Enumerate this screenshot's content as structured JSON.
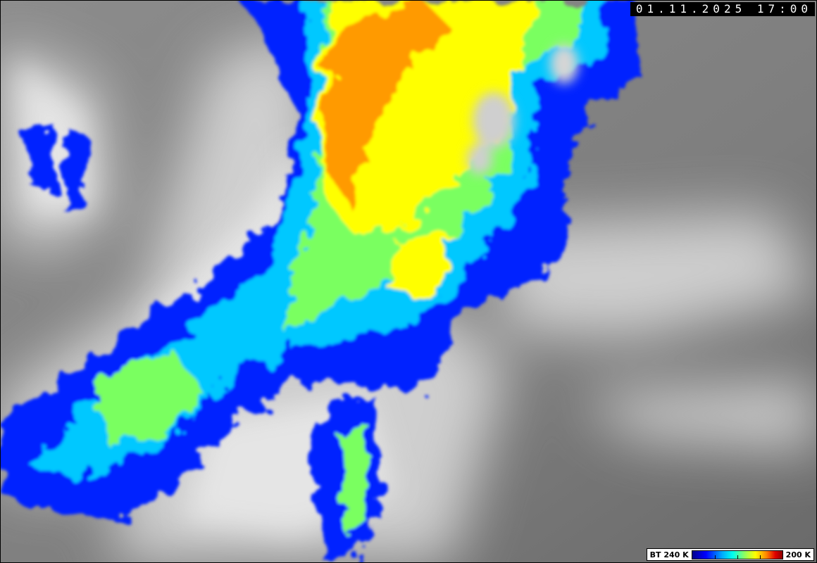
{
  "timestamp": "01.11.2025 17:00",
  "legend": {
    "min_label": "BT 240 K",
    "max_label": "200 K",
    "colors": [
      "#00008c",
      "#0000ff",
      "#00aaff",
      "#00ffee",
      "#90ff60",
      "#ffff00",
      "#ff8800",
      "#e00000",
      "#8c0000"
    ]
  }
}
